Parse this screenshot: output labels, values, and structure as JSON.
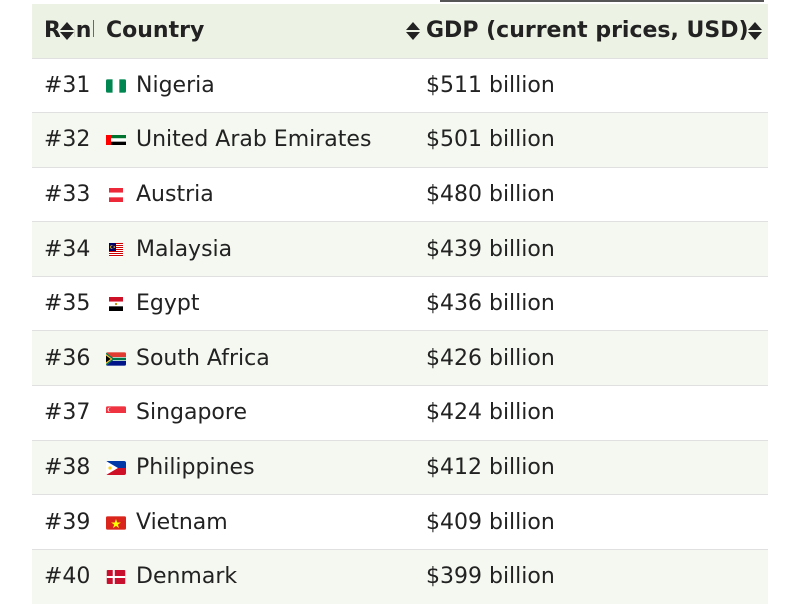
{
  "table": {
    "headers": {
      "rank": "Rank",
      "country": "Country",
      "gdp": "GDP (current prices, USD)"
    },
    "rows": [
      {
        "rank": "#31",
        "country": "Nigeria",
        "gdp": "$511 billion",
        "flag": "nigeria-flag-icon"
      },
      {
        "rank": "#32",
        "country": "United Arab Emirates",
        "gdp": "$501 billion",
        "flag": "uae-flag-icon"
      },
      {
        "rank": "#33",
        "country": "Austria",
        "gdp": "$480 billion",
        "flag": "austria-flag-icon"
      },
      {
        "rank": "#34",
        "country": "Malaysia",
        "gdp": "$439 billion",
        "flag": "malaysia-flag-icon"
      },
      {
        "rank": "#35",
        "country": "Egypt",
        "gdp": "$436 billion",
        "flag": "egypt-flag-icon"
      },
      {
        "rank": "#36",
        "country": "South Africa",
        "gdp": "$426 billion",
        "flag": "south-africa-flag-icon"
      },
      {
        "rank": "#37",
        "country": "Singapore",
        "gdp": "$424 billion",
        "flag": "singapore-flag-icon"
      },
      {
        "rank": "#38",
        "country": "Philippines",
        "gdp": "$412 billion",
        "flag": "philippines-flag-icon"
      },
      {
        "rank": "#39",
        "country": "Vietnam",
        "gdp": "$409 billion",
        "flag": "vietnam-flag-icon"
      },
      {
        "rank": "#40",
        "country": "Denmark",
        "gdp": "$399 billion",
        "flag": "denmark-flag-icon"
      }
    ]
  },
  "colors": {
    "header_bg": "#edf3e4",
    "stripe_bg": "#f4f8f0",
    "text": "#222222"
  }
}
